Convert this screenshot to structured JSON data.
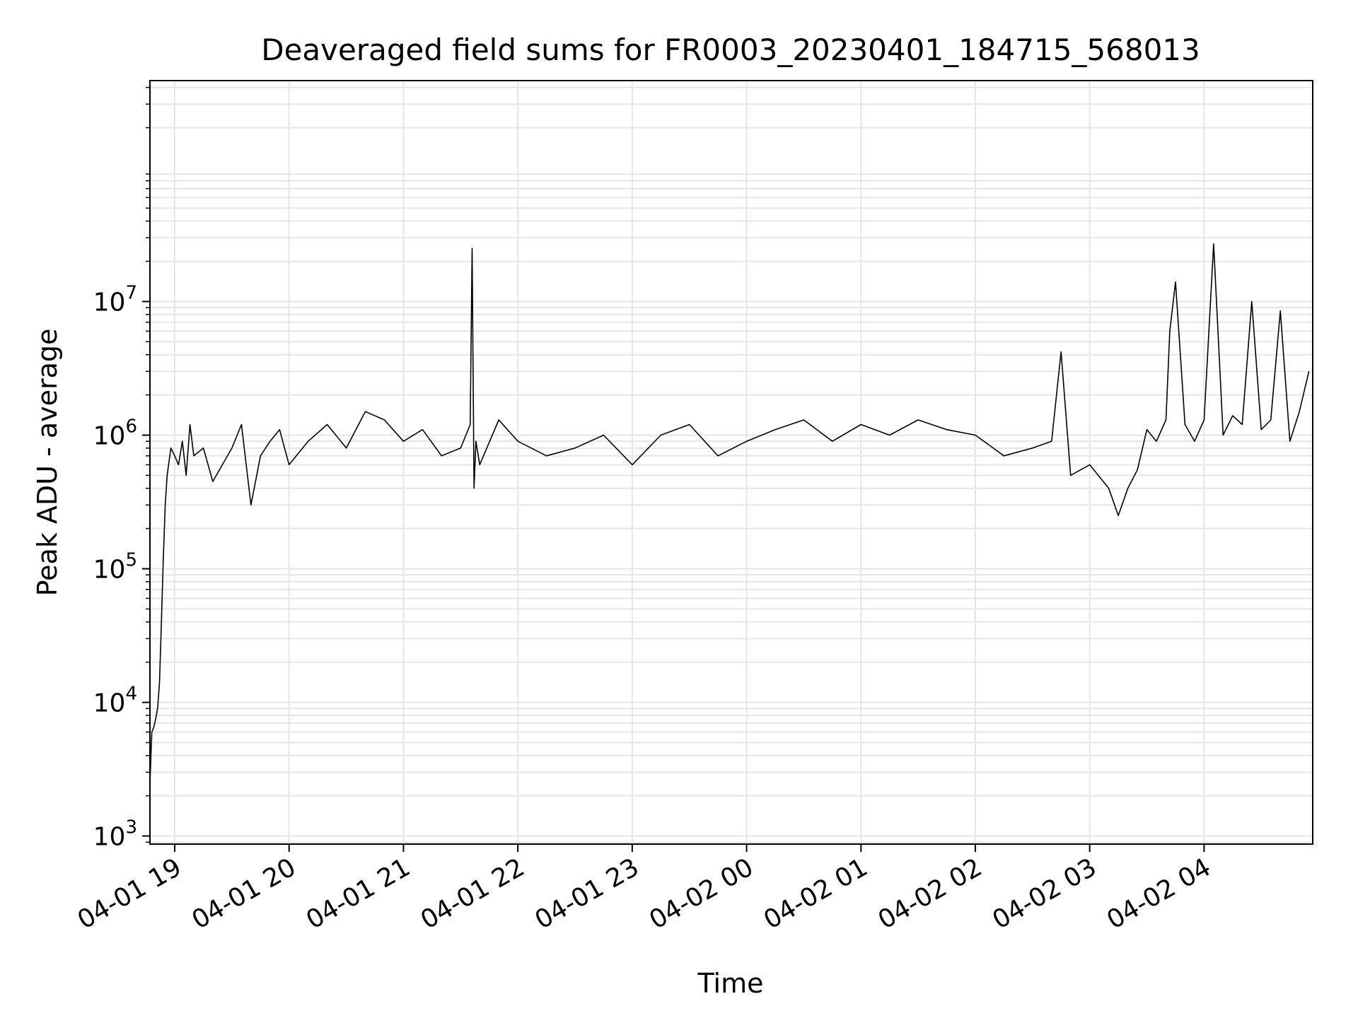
{
  "chart_data": {
    "type": "line",
    "title": "Deaveraged field sums for FR0003_20230401_184715_568013",
    "xlabel": "Time",
    "ylabel": "Peak ADU - average",
    "yscale": "log",
    "ylim": [
      870,
      450000000
    ],
    "xlim": [
      "2023-04-01 18:47",
      "2023-04-02 04:57"
    ],
    "grid": true,
    "x_ticks": [
      {
        "label": "04-01 19",
        "value": "2023-04-01 19:00"
      },
      {
        "label": "04-01 20",
        "value": "2023-04-01 20:00"
      },
      {
        "label": "04-01 21",
        "value": "2023-04-01 21:00"
      },
      {
        "label": "04-01 22",
        "value": "2023-04-01 22:00"
      },
      {
        "label": "04-01 23",
        "value": "2023-04-01 23:00"
      },
      {
        "label": "04-02 00",
        "value": "2023-04-02 00:00"
      },
      {
        "label": "04-02 01",
        "value": "2023-04-02 01:00"
      },
      {
        "label": "04-02 02",
        "value": "2023-04-02 02:00"
      },
      {
        "label": "04-02 03",
        "value": "2023-04-02 03:00"
      },
      {
        "label": "04-02 04",
        "value": "2023-04-02 04:00"
      }
    ],
    "y_ticks": [
      {
        "base": "10",
        "exp": "3",
        "value": 1000
      },
      {
        "base": "10",
        "exp": "4",
        "value": 10000
      },
      {
        "base": "10",
        "exp": "5",
        "value": 100000
      },
      {
        "base": "10",
        "exp": "6",
        "value": 1000000
      },
      {
        "base": "10",
        "exp": "7",
        "value": 10000000
      }
    ],
    "series": [
      {
        "color": "#000000",
        "x": [
          "2023-04-01 18:47",
          "2023-04-01 18:48",
          "2023-04-01 18:49",
          "2023-04-01 18:50",
          "2023-04-01 18:51",
          "2023-04-01 18:52",
          "2023-04-01 18:53",
          "2023-04-01 18:54",
          "2023-04-01 18:55",
          "2023-04-01 18:56",
          "2023-04-01 18:58",
          "2023-04-01 19:00",
          "2023-04-01 19:02",
          "2023-04-01 19:04",
          "2023-04-01 19:06",
          "2023-04-01 19:08",
          "2023-04-01 19:10",
          "2023-04-01 19:15",
          "2023-04-01 19:20",
          "2023-04-01 19:25",
          "2023-04-01 19:30",
          "2023-04-01 19:35",
          "2023-04-01 19:40",
          "2023-04-01 19:45",
          "2023-04-01 19:50",
          "2023-04-01 19:55",
          "2023-04-01 20:00",
          "2023-04-01 20:10",
          "2023-04-01 20:20",
          "2023-04-01 20:30",
          "2023-04-01 20:40",
          "2023-04-01 20:50",
          "2023-04-01 21:00",
          "2023-04-01 21:10",
          "2023-04-01 21:20",
          "2023-04-01 21:30",
          "2023-04-01 21:35",
          "2023-04-01 21:36",
          "2023-04-01 21:37",
          "2023-04-01 21:38",
          "2023-04-01 21:40",
          "2023-04-01 21:50",
          "2023-04-01 22:00",
          "2023-04-01 22:15",
          "2023-04-01 22:30",
          "2023-04-01 22:45",
          "2023-04-01 23:00",
          "2023-04-01 23:15",
          "2023-04-01 23:30",
          "2023-04-01 23:45",
          "2023-04-02 00:00",
          "2023-04-02 00:15",
          "2023-04-02 00:30",
          "2023-04-02 00:45",
          "2023-04-02 01:00",
          "2023-04-02 01:15",
          "2023-04-02 01:30",
          "2023-04-02 01:45",
          "2023-04-02 02:00",
          "2023-04-02 02:15",
          "2023-04-02 02:30",
          "2023-04-02 02:40",
          "2023-04-02 02:45",
          "2023-04-02 02:50",
          "2023-04-02 03:00",
          "2023-04-02 03:10",
          "2023-04-02 03:15",
          "2023-04-02 03:20",
          "2023-04-02 03:25",
          "2023-04-02 03:30",
          "2023-04-02 03:35",
          "2023-04-02 03:40",
          "2023-04-02 03:42",
          "2023-04-02 03:45",
          "2023-04-02 03:50",
          "2023-04-02 03:55",
          "2023-04-02 04:00",
          "2023-04-02 04:05",
          "2023-04-02 04:10",
          "2023-04-02 04:15",
          "2023-04-02 04:20",
          "2023-04-02 04:25",
          "2023-04-02 04:30",
          "2023-04-02 04:35",
          "2023-04-02 04:40",
          "2023-04-02 04:45",
          "2023-04-02 04:50",
          "2023-04-02 04:55"
        ],
        "y": [
          2500,
          6000,
          6500,
          7500,
          9000,
          14000,
          40000,
          120000,
          300000,
          500000,
          800000,
          700000,
          600000,
          900000,
          500000,
          1200000,
          700000,
          800000,
          450000,
          600000,
          800000,
          1200000,
          300000,
          700000,
          900000,
          1100000,
          600000,
          900000,
          1200000,
          800000,
          1500000,
          1300000,
          900000,
          1100000,
          700000,
          800000,
          1200000,
          25000000,
          400000,
          900000,
          600000,
          1300000,
          900000,
          700000,
          800000,
          1000000,
          600000,
          1000000,
          1200000,
          700000,
          900000,
          1100000,
          1300000,
          900000,
          1200000,
          1000000,
          1300000,
          1100000,
          1000000,
          700000,
          800000,
          900000,
          4200000,
          500000,
          600000,
          400000,
          250000,
          400000,
          550000,
          1100000,
          900000,
          1300000,
          6000000,
          14000000,
          1200000,
          900000,
          1300000,
          27000000,
          1000000,
          1400000,
          1200000,
          10000000,
          1100000,
          1300000,
          8500000,
          900000,
          1500000,
          3000000
        ]
      }
    ]
  }
}
